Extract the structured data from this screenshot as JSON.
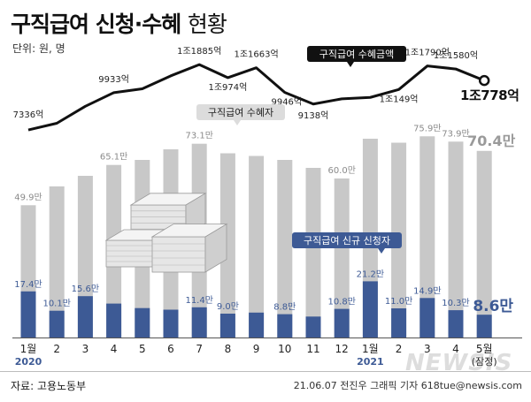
{
  "header": {
    "title_main": "구직급여 신청·수혜",
    "title_sub": "현황",
    "unit": "단위: 원, 명"
  },
  "footer": {
    "source": "자료: 고용노동부",
    "credit": "21.06.07 전진우 그래픽 기자 618tue@newsis.com",
    "watermark": "NEWSIS"
  },
  "chart_data": {
    "type": "bar",
    "categories": [
      "1월",
      "2",
      "3",
      "4",
      "5",
      "6",
      "7",
      "8",
      "9",
      "10",
      "11",
      "12",
      "1월",
      "2",
      "3",
      "4",
      "5월"
    ],
    "year_labels": [
      {
        "index": 0,
        "text": "2020"
      },
      {
        "index": 12,
        "text": "2021"
      }
    ],
    "provisional_label": "(잠정)",
    "series": [
      {
        "name": "구직급여 수혜자",
        "kind": "bar",
        "color": "#c8c8c8",
        "values": [
          49.9,
          57.0,
          61.0,
          65.1,
          67.0,
          71.0,
          73.1,
          69.5,
          68.5,
          67.0,
          64.0,
          60.0,
          75.0,
          73.5,
          75.9,
          73.9,
          70.4
        ],
        "data_labels": {
          "0": "49.9만",
          "3": "65.1만",
          "6": "73.1만",
          "11": "60.0만",
          "14": "75.9만",
          "15": "73.9만",
          "16": "70.4만"
        }
      },
      {
        "name": "구직급여 신규 신청자",
        "kind": "bar",
        "color": "#3d5a95",
        "values": [
          17.4,
          10.1,
          15.6,
          12.8,
          11.1,
          10.5,
          11.4,
          9.0,
          9.4,
          8.8,
          7.9,
          10.8,
          21.2,
          11.0,
          14.9,
          10.3,
          8.6
        ],
        "data_labels": {
          "0": "17.4만",
          "1": "10.1만",
          "2": "15.6만",
          "6": "11.4만",
          "7": "9.0만",
          "9": "8.8만",
          "11": "10.8만",
          "12": "21.2만",
          "13": "11.0만",
          "14": "14.9만",
          "15": "10.3만",
          "16": "8.6만"
        }
      },
      {
        "name": "구직급여 수혜금액",
        "kind": "line",
        "color": "#111111",
        "unit": "억원",
        "values": [
          7336,
          7800,
          8982,
          9933,
          10200,
          11103,
          11885,
          10974,
          11663,
          9946,
          9138,
          9500,
          9600,
          10149,
          11790,
          11580,
          10778
        ],
        "data_labels": {
          "0": "7336억",
          "3": "9933억",
          "6": "1조1885억",
          "7": "1조974억",
          "8": "1조1663억",
          "9": "9946억",
          "10": "9138억",
          "13": "1조149억",
          "14": "1조1790억",
          "15": "1조1580억",
          "16": "1조778억"
        }
      }
    ],
    "bar_ylim": [
      0,
      90
    ],
    "line_ylim": [
      5000,
      13000
    ]
  }
}
